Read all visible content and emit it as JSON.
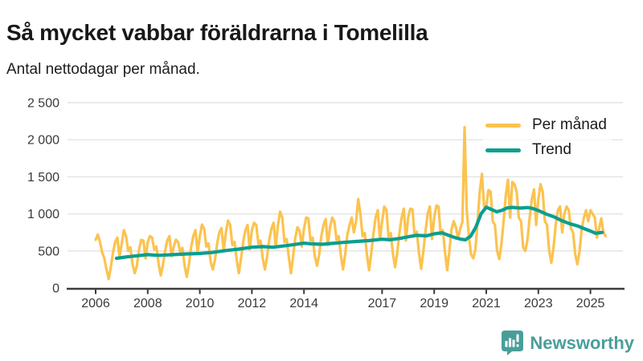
{
  "header": {
    "title": "Så mycket vabbar föräldrarna i Tomelilla",
    "subtitle": "Antal nettodagar per månad."
  },
  "legend": {
    "items": [
      {
        "label": "Per månad",
        "color": "#FBC34F"
      },
      {
        "label": "Trend",
        "color": "#0C9E8F"
      }
    ]
  },
  "footer": {
    "brand": "Newsworthy",
    "brand_color": "#4A9E99"
  },
  "chart_data": {
    "type": "line",
    "title": "Så mycket vabbar föräldrarna i Tomelilla",
    "subtitle": "Antal nettodagar per månad.",
    "xlabel": "",
    "ylabel": "",
    "ylim": [
      0,
      2500
    ],
    "xlim": [
      2005.9,
      2025.8
    ],
    "grid": "horizontal",
    "legend_position": "top-right",
    "colors": {
      "grid": "#E4E4E4",
      "axis": "#3C3C3C",
      "axis_text": "#3A3A3A",
      "background": "#FFFFFF"
    },
    "y_axis": {
      "ticks": [
        {
          "value": 0,
          "label": "0"
        },
        {
          "value": 500,
          "label": "500"
        },
        {
          "value": 1000,
          "label": "1 000"
        },
        {
          "value": 1500,
          "label": "1 500"
        },
        {
          "value": 2000,
          "label": "2 000"
        },
        {
          "value": 2500,
          "label": "2 500"
        }
      ]
    },
    "x_axis": {
      "ticks": [
        2006,
        2008,
        2010,
        2012,
        2014,
        2017,
        2019,
        2021,
        2023,
        2025
      ]
    },
    "series": [
      {
        "name": "Per månad",
        "color": "#FBC34F",
        "unit": "nettodagar",
        "frequency": "monthly",
        "monthly_values_by_year": {
          "2006": [
            650,
            720,
            620,
            480,
            400,
            250,
            120,
            280,
            480,
            620,
            680,
            420
          ],
          "2007": [
            600,
            780,
            700,
            500,
            550,
            320,
            200,
            300,
            520,
            650,
            640,
            400
          ],
          "2008": [
            620,
            700,
            680,
            520,
            560,
            330,
            170,
            310,
            500,
            640,
            700,
            430
          ],
          "2009": [
            560,
            650,
            620,
            480,
            540,
            300,
            150,
            320,
            550,
            700,
            780,
            480
          ],
          "2010": [
            700,
            855,
            800,
            560,
            600,
            350,
            250,
            380,
            600,
            750,
            810,
            500
          ],
          "2011": [
            750,
            910,
            850,
            580,
            620,
            380,
            200,
            400,
            620,
            780,
            850,
            520
          ],
          "2012": [
            780,
            880,
            850,
            600,
            640,
            400,
            250,
            420,
            650,
            800,
            880,
            550
          ],
          "2013": [
            850,
            1030,
            950,
            620,
            660,
            420,
            200,
            430,
            680,
            820,
            770,
            560
          ],
          "2014": [
            800,
            950,
            940,
            640,
            680,
            430,
            300,
            450,
            700,
            850,
            930,
            580
          ],
          "2015": [
            820,
            950,
            900,
            650,
            700,
            440,
            250,
            460,
            720,
            850,
            950,
            750
          ],
          "2016": [
            900,
            1200,
            1000,
            700,
            740,
            450,
            240,
            470,
            730,
            950,
            1050,
            650
          ],
          "2017": [
            900,
            1100,
            1050,
            680,
            740,
            460,
            280,
            480,
            750,
            950,
            1070,
            640
          ],
          "2018": [
            950,
            1070,
            1060,
            700,
            760,
            470,
            260,
            490,
            770,
            1000,
            1100,
            660
          ],
          "2019": [
            950,
            1110,
            1100,
            720,
            780,
            480,
            240,
            500,
            790,
            900,
            820,
            670
          ],
          "2020": [
            800,
            890,
            2170,
            1050,
            700,
            450,
            400,
            520,
            900,
            1300,
            1540,
            1100
          ],
          "2021": [
            1100,
            1320,
            1300,
            900,
            850,
            500,
            390,
            600,
            900,
            1250,
            1460,
            950
          ],
          "2022": [
            1430,
            1400,
            1300,
            950,
            900,
            550,
            500,
            650,
            950,
            1200,
            1330,
            850
          ],
          "2023": [
            1200,
            1400,
            1300,
            900,
            850,
            500,
            340,
            550,
            850,
            1050,
            1100,
            750
          ],
          "2024": [
            1000,
            1100,
            1050,
            800,
            750,
            450,
            320,
            500,
            800,
            950,
            1050,
            900
          ],
          "2025": [
            1050,
            1000,
            950,
            680,
            800,
            940,
            750,
            700
          ]
        }
      },
      {
        "name": "Trend",
        "color": "#0C9E8F",
        "unit": "nettodagar",
        "points": [
          [
            2006.8,
            400
          ],
          [
            2007.2,
            420
          ],
          [
            2007.6,
            435
          ],
          [
            2008.0,
            450
          ],
          [
            2008.4,
            440
          ],
          [
            2009.0,
            450
          ],
          [
            2009.5,
            460
          ],
          [
            2010.0,
            465
          ],
          [
            2010.5,
            480
          ],
          [
            2011.0,
            505
          ],
          [
            2011.5,
            525
          ],
          [
            2012.0,
            550
          ],
          [
            2012.4,
            558
          ],
          [
            2012.8,
            550
          ],
          [
            2013.0,
            558
          ],
          [
            2013.5,
            580
          ],
          [
            2014.0,
            605
          ],
          [
            2014.3,
            595
          ],
          [
            2014.7,
            590
          ],
          [
            2015.0,
            600
          ],
          [
            2015.5,
            615
          ],
          [
            2016.0,
            628
          ],
          [
            2016.5,
            640
          ],
          [
            2017.0,
            658
          ],
          [
            2017.3,
            650
          ],
          [
            2017.7,
            670
          ],
          [
            2018.0,
            690
          ],
          [
            2018.3,
            710
          ],
          [
            2018.7,
            705
          ],
          [
            2019.0,
            730
          ],
          [
            2019.3,
            745
          ],
          [
            2019.6,
            705
          ],
          [
            2019.8,
            680
          ],
          [
            2020.0,
            660
          ],
          [
            2020.2,
            650
          ],
          [
            2020.4,
            700
          ],
          [
            2020.6,
            820
          ],
          [
            2020.8,
            1000
          ],
          [
            2021.0,
            1090
          ],
          [
            2021.2,
            1060
          ],
          [
            2021.4,
            1028
          ],
          [
            2021.6,
            1048
          ],
          [
            2021.8,
            1080
          ],
          [
            2022.0,
            1088
          ],
          [
            2022.3,
            1078
          ],
          [
            2022.6,
            1085
          ],
          [
            2022.8,
            1070
          ],
          [
            2023.0,
            1045
          ],
          [
            2023.3,
            998
          ],
          [
            2023.6,
            960
          ],
          [
            2023.9,
            908
          ],
          [
            2024.2,
            868
          ],
          [
            2024.5,
            838
          ],
          [
            2024.8,
            795
          ],
          [
            2025.0,
            768
          ],
          [
            2025.2,
            738
          ],
          [
            2025.45,
            750
          ]
        ]
      }
    ]
  }
}
